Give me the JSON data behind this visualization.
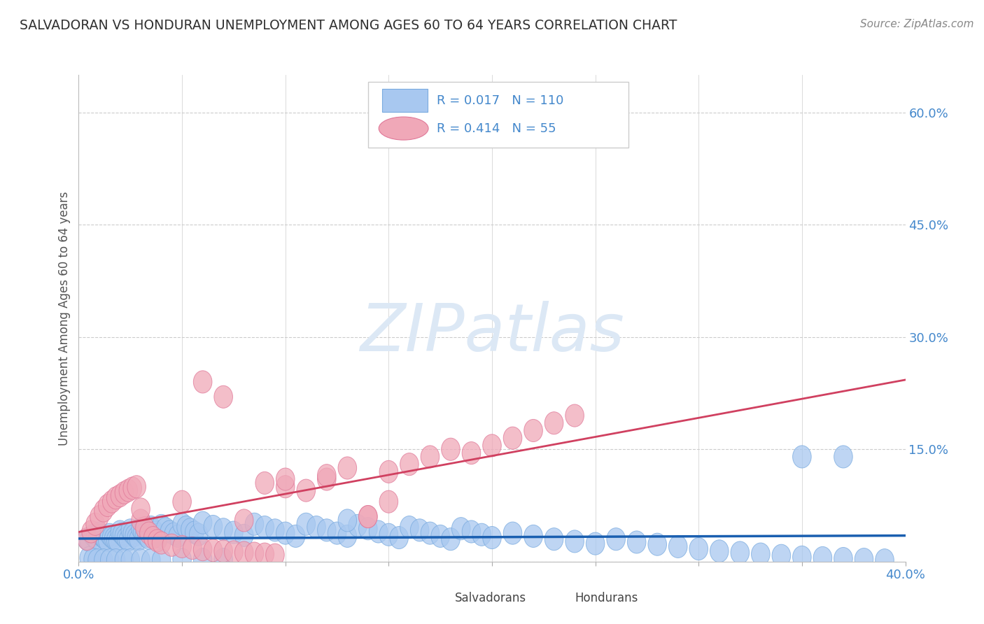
{
  "title": "SALVADORAN VS HONDURAN UNEMPLOYMENT AMONG AGES 60 TO 64 YEARS CORRELATION CHART",
  "source": "Source: ZipAtlas.com",
  "ylabel": "Unemployment Among Ages 60 to 64 years",
  "xlim": [
    0.0,
    0.4
  ],
  "ylim": [
    -0.02,
    0.65
  ],
  "plot_ylim": [
    0.0,
    0.65
  ],
  "xticks": [
    0.0,
    0.05,
    0.1,
    0.15,
    0.2,
    0.25,
    0.3,
    0.35,
    0.4
  ],
  "yticks_right": [
    0.0,
    0.15,
    0.3,
    0.45,
    0.6
  ],
  "ytick_right_labels": [
    "",
    "15.0%",
    "30.0%",
    "45.0%",
    "60.0%"
  ],
  "salvadorans_R": 0.017,
  "salvadorans_N": 110,
  "hondurans_R": 0.414,
  "hondurans_N": 55,
  "salvadoran_color": "#a8c8f0",
  "honduran_color": "#f0a8b8",
  "salvadoran_edge_color": "#7aabdf",
  "honduran_edge_color": "#e07898",
  "trendline_salvadoran_color": "#1a5fb0",
  "trendline_honduran_color": "#d04060",
  "background_color": "#ffffff",
  "grid_color": "#cccccc",
  "title_color": "#303030",
  "legend_text_color": "#4488cc",
  "right_axis_label_color": "#4488cc",
  "watermark_color": "#dce8f5",
  "watermark_text": "ZIPatlas",
  "salvadoran_x": [
    0.004,
    0.005,
    0.007,
    0.008,
    0.009,
    0.01,
    0.011,
    0.012,
    0.013,
    0.014,
    0.015,
    0.016,
    0.017,
    0.018,
    0.019,
    0.02,
    0.021,
    0.022,
    0.023,
    0.024,
    0.025,
    0.026,
    0.027,
    0.028,
    0.029,
    0.03,
    0.031,
    0.032,
    0.033,
    0.034,
    0.035,
    0.036,
    0.037,
    0.038,
    0.039,
    0.04,
    0.042,
    0.044,
    0.046,
    0.048,
    0.05,
    0.052,
    0.054,
    0.056,
    0.058,
    0.06,
    0.065,
    0.07,
    0.075,
    0.08,
    0.085,
    0.09,
    0.095,
    0.1,
    0.105,
    0.11,
    0.115,
    0.12,
    0.125,
    0.13,
    0.135,
    0.14,
    0.145,
    0.15,
    0.155,
    0.16,
    0.165,
    0.17,
    0.175,
    0.18,
    0.185,
    0.19,
    0.195,
    0.2,
    0.21,
    0.22,
    0.23,
    0.24,
    0.25,
    0.26,
    0.27,
    0.28,
    0.29,
    0.3,
    0.31,
    0.32,
    0.33,
    0.34,
    0.35,
    0.36,
    0.37,
    0.38,
    0.39,
    0.005,
    0.007,
    0.009,
    0.012,
    0.015,
    0.018,
    0.022,
    0.025,
    0.03,
    0.035,
    0.04,
    0.05,
    0.06,
    0.07,
    0.35,
    0.37,
    0.13
  ],
  "salvadoran_y": [
    0.03,
    0.028,
    0.035,
    0.032,
    0.029,
    0.038,
    0.035,
    0.033,
    0.03,
    0.028,
    0.036,
    0.033,
    0.031,
    0.029,
    0.027,
    0.04,
    0.037,
    0.034,
    0.031,
    0.029,
    0.042,
    0.038,
    0.035,
    0.032,
    0.03,
    0.044,
    0.04,
    0.037,
    0.034,
    0.031,
    0.046,
    0.042,
    0.039,
    0.036,
    0.033,
    0.048,
    0.044,
    0.04,
    0.037,
    0.034,
    0.05,
    0.046,
    0.043,
    0.039,
    0.036,
    0.052,
    0.047,
    0.043,
    0.039,
    0.035,
    0.05,
    0.046,
    0.042,
    0.038,
    0.034,
    0.05,
    0.046,
    0.042,
    0.038,
    0.034,
    0.048,
    0.044,
    0.04,
    0.036,
    0.032,
    0.046,
    0.042,
    0.038,
    0.034,
    0.03,
    0.044,
    0.04,
    0.036,
    0.032,
    0.038,
    0.034,
    0.03,
    0.027,
    0.024,
    0.03,
    0.026,
    0.023,
    0.02,
    0.017,
    0.014,
    0.012,
    0.01,
    0.008,
    0.006,
    0.005,
    0.004,
    0.003,
    0.002,
    0.005,
    0.003,
    0.002,
    0.002,
    0.002,
    0.002,
    0.002,
    0.002,
    0.002,
    0.002,
    0.002,
    0.003,
    0.003,
    0.003,
    0.14,
    0.14,
    0.055
  ],
  "honduran_x": [
    0.004,
    0.006,
    0.008,
    0.01,
    0.012,
    0.014,
    0.016,
    0.018,
    0.02,
    0.022,
    0.024,
    0.026,
    0.028,
    0.03,
    0.032,
    0.034,
    0.036,
    0.038,
    0.04,
    0.045,
    0.05,
    0.055,
    0.06,
    0.065,
    0.07,
    0.075,
    0.08,
    0.085,
    0.09,
    0.095,
    0.1,
    0.11,
    0.12,
    0.13,
    0.14,
    0.15,
    0.16,
    0.17,
    0.18,
    0.19,
    0.2,
    0.21,
    0.22,
    0.23,
    0.24,
    0.06,
    0.07,
    0.08,
    0.09,
    0.1,
    0.12,
    0.14,
    0.03,
    0.05,
    0.15
  ],
  "honduran_y": [
    0.03,
    0.04,
    0.05,
    0.06,
    0.068,
    0.075,
    0.08,
    0.085,
    0.088,
    0.092,
    0.095,
    0.098,
    0.1,
    0.055,
    0.045,
    0.038,
    0.032,
    0.028,
    0.025,
    0.022,
    0.02,
    0.018,
    0.016,
    0.015,
    0.014,
    0.013,
    0.012,
    0.011,
    0.01,
    0.009,
    0.1,
    0.095,
    0.11,
    0.125,
    0.06,
    0.12,
    0.13,
    0.14,
    0.15,
    0.145,
    0.155,
    0.165,
    0.175,
    0.185,
    0.195,
    0.24,
    0.22,
    0.055,
    0.105,
    0.11,
    0.115,
    0.06,
    0.07,
    0.08,
    0.08
  ]
}
